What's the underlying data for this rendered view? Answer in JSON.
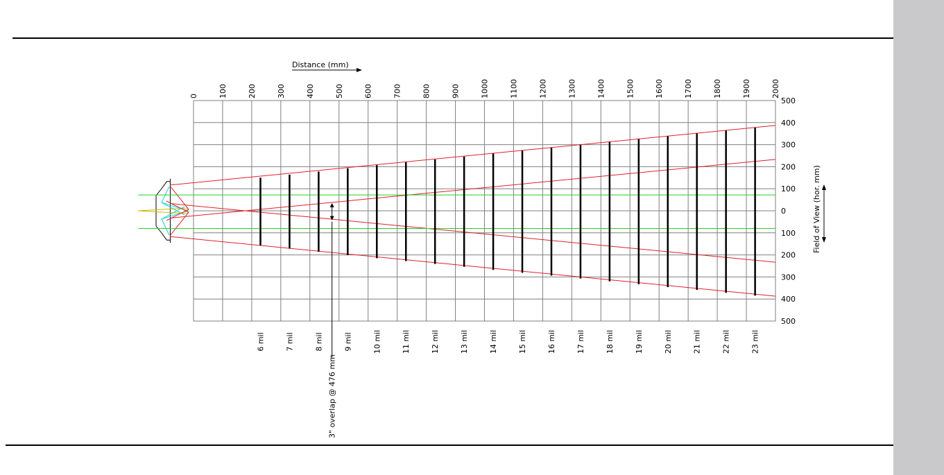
{
  "chart_data": {
    "type": "line",
    "subtype": "scan-field-of-view",
    "x_axis": {
      "label": "Distance (mm)",
      "range": [
        0,
        2000
      ],
      "ticks": [
        "0",
        "100",
        "200",
        "300",
        "400",
        "500",
        "600",
        "700",
        "800",
        "900",
        "1000",
        "1100",
        "1200",
        "1300",
        "1400",
        "1500",
        "1600",
        "1700",
        "1800",
        "1900",
        "2000"
      ],
      "label_arrow": "right"
    },
    "y_axis": {
      "label": "Field of View (hor. mm)",
      "range": [
        -500,
        500
      ],
      "ticks": [
        "500",
        "400",
        "300",
        "200",
        "100",
        "0",
        "100",
        "200",
        "300",
        "400",
        "500"
      ],
      "tick_values": [
        500,
        400,
        300,
        200,
        100,
        0,
        -100,
        -200,
        -300,
        -400,
        -500
      ],
      "label_arrow": "both",
      "position": "right"
    },
    "grid": true,
    "series": [
      {
        "color": "#e0202a",
        "x": [
          -80,
          2000
        ],
        "y": [
          117,
          387
        ],
        "line_width": 1
      },
      {
        "color": "#e0202a",
        "x": [
          -80,
          2000
        ],
        "y": [
          -117,
          -387
        ],
        "line_width": 1
      },
      {
        "color": "#e0202a",
        "x": [
          -80,
          2000
        ],
        "y": [
          -33,
          233
        ],
        "line_width": 1
      },
      {
        "color": "#e0202a",
        "x": [
          -80,
          2000
        ],
        "y": [
          33,
          -233
        ],
        "line_width": 1
      },
      {
        "color": "#22d022",
        "x": [
          -190,
          2000
        ],
        "y": [
          72,
          72
        ],
        "line_width": 1
      },
      {
        "color": "#22d022",
        "x": [
          -190,
          2000
        ],
        "y": [
          -80,
          -80
        ],
        "line_width": 1
      }
    ],
    "code_density_bars": [
      {
        "label": "6 mil",
        "x": 230,
        "y_top": 150,
        "y_bottom": -157
      },
      {
        "label": "7 mil",
        "x": 330,
        "y_top": 164,
        "y_bottom": -171
      },
      {
        "label": "8 mil",
        "x": 430,
        "y_top": 178,
        "y_bottom": -186
      },
      {
        "label": "9 mil",
        "x": 530,
        "y_top": 193,
        "y_bottom": -201
      },
      {
        "label": "10 mil",
        "x": 630,
        "y_top": 207,
        "y_bottom": -215
      },
      {
        "label": "11 mil",
        "x": 730,
        "y_top": 220,
        "y_bottom": -228
      },
      {
        "label": "12 mil",
        "x": 830,
        "y_top": 233,
        "y_bottom": -241
      },
      {
        "label": "13 mil",
        "x": 930,
        "y_top": 246,
        "y_bottom": -254
      },
      {
        "label": "14 mil",
        "x": 1030,
        "y_top": 260,
        "y_bottom": -268
      },
      {
        "label": "15 mil",
        "x": 1130,
        "y_top": 273,
        "y_bottom": -281
      },
      {
        "label": "16 mil",
        "x": 1230,
        "y_top": 286,
        "y_bottom": -294
      },
      {
        "label": "17 mil",
        "x": 1330,
        "y_top": 299,
        "y_bottom": -307
      },
      {
        "label": "18 mil",
        "x": 1430,
        "y_top": 312,
        "y_bottom": -320
      },
      {
        "label": "19 mil",
        "x": 1530,
        "y_top": 325,
        "y_bottom": -333
      },
      {
        "label": "20 mil",
        "x": 1630,
        "y_top": 338,
        "y_bottom": -346
      },
      {
        "label": "21 mil",
        "x": 1730,
        "y_top": 351,
        "y_bottom": -359
      },
      {
        "label": "22 mil",
        "x": 1830,
        "y_top": 364,
        "y_bottom": -372
      },
      {
        "label": "23 mil",
        "x": 1930,
        "y_top": 377,
        "y_bottom": -385
      }
    ],
    "annotations": [
      {
        "text": "3\" overlap @ 476 mm",
        "x": 476,
        "y_top": 35,
        "y_bottom": -43
      }
    ],
    "colors": {
      "beam": "#e0202a",
      "overlap": "#22d022",
      "scanner_inner": "#20d0d0",
      "grid": "#7f7f7f",
      "bar": "#000000"
    }
  }
}
